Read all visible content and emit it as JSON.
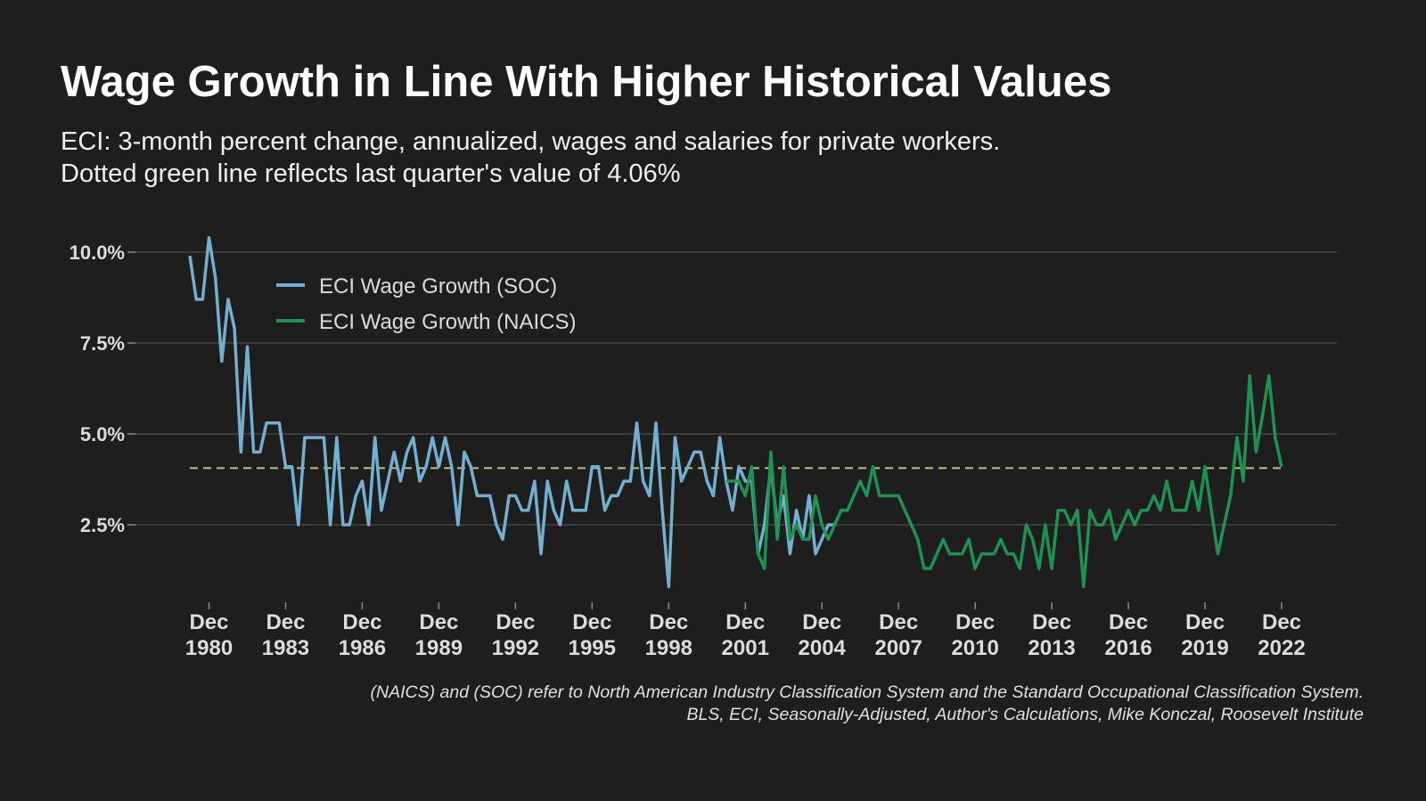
{
  "chart_data": {
    "type": "line",
    "title": "Wage Growth in Line With Higher Historical Values",
    "subtitle": [
      "ECI: 3-month percent change, annualized, wages and salaries for private workers.",
      "Dotted green line reflects last quarter's value of 4.06%"
    ],
    "notes": [
      "(NAICS) and (SOC) refer to North American Industry Classification System and the Standard Occupational Classification System.",
      "BLS, ECI, Seasonally-Adjusted, Author's Calculations, Mike Konczal, Roosevelt Institute"
    ],
    "x": [
      "1980-03",
      "1980-06",
      "1980-09",
      "1980-12",
      "1981-03",
      "1981-06",
      "1981-09",
      "1981-12",
      "1982-03",
      "1982-06",
      "1982-09",
      "1982-12",
      "1983-03",
      "1983-06",
      "1983-09",
      "1983-12",
      "1984-03",
      "1984-06",
      "1984-09",
      "1984-12",
      "1985-03",
      "1985-06",
      "1985-09",
      "1985-12",
      "1986-03",
      "1986-06",
      "1986-09",
      "1986-12",
      "1987-03",
      "1987-06",
      "1987-09",
      "1987-12",
      "1988-03",
      "1988-06",
      "1988-09",
      "1988-12",
      "1989-03",
      "1989-06",
      "1989-09",
      "1989-12",
      "1990-03",
      "1990-06",
      "1990-09",
      "1990-12",
      "1991-03",
      "1991-06",
      "1991-09",
      "1991-12",
      "1992-03",
      "1992-06",
      "1992-09",
      "1992-12",
      "1993-03",
      "1993-06",
      "1993-09",
      "1993-12",
      "1994-03",
      "1994-06",
      "1994-09",
      "1994-12",
      "1995-03",
      "1995-06",
      "1995-09",
      "1995-12",
      "1996-03",
      "1996-06",
      "1996-09",
      "1996-12",
      "1997-03",
      "1997-06",
      "1997-09",
      "1997-12",
      "1998-03",
      "1998-06",
      "1998-09",
      "1998-12",
      "1999-03",
      "1999-06",
      "1999-09",
      "1999-12",
      "2000-03",
      "2000-06",
      "2000-09",
      "2000-12",
      "2001-03",
      "2001-06",
      "2001-09",
      "2001-12",
      "2002-03",
      "2002-06",
      "2002-09",
      "2002-12",
      "2003-03",
      "2003-06",
      "2003-09",
      "2003-12",
      "2004-03",
      "2004-06",
      "2004-09",
      "2004-12",
      "2005-03",
      "2005-06",
      "2005-09",
      "2005-12",
      "2006-03",
      "2006-06",
      "2006-09",
      "2006-12",
      "2007-03",
      "2007-06",
      "2007-09",
      "2007-12",
      "2008-03",
      "2008-06",
      "2008-09",
      "2008-12",
      "2009-03",
      "2009-06",
      "2009-09",
      "2009-12",
      "2010-03",
      "2010-06",
      "2010-09",
      "2010-12",
      "2011-03",
      "2011-06",
      "2011-09",
      "2011-12",
      "2012-03",
      "2012-06",
      "2012-09",
      "2012-12",
      "2013-03",
      "2013-06",
      "2013-09",
      "2013-12",
      "2014-03",
      "2014-06",
      "2014-09",
      "2014-12",
      "2015-03",
      "2015-06",
      "2015-09",
      "2015-12",
      "2016-03",
      "2016-06",
      "2016-09",
      "2016-12",
      "2017-03",
      "2017-06",
      "2017-09",
      "2017-12",
      "2018-03",
      "2018-06",
      "2018-09",
      "2018-12",
      "2019-03",
      "2019-06",
      "2019-09",
      "2019-12",
      "2020-03",
      "2020-06",
      "2020-09",
      "2020-12",
      "2021-03",
      "2021-06",
      "2021-09",
      "2021-12",
      "2022-03",
      "2022-06",
      "2022-09",
      "2022-12"
    ],
    "series": [
      {
        "name": "ECI Wage Growth (SOC)",
        "color": "#74aed0",
        "values": [
          9.9,
          8.7,
          8.7,
          10.4,
          9.3,
          7.0,
          8.7,
          7.9,
          4.5,
          7.4,
          4.5,
          4.5,
          5.3,
          5.3,
          5.3,
          4.1,
          4.1,
          2.5,
          4.9,
          4.9,
          4.9,
          4.9,
          2.5,
          4.9,
          2.5,
          2.5,
          3.3,
          3.7,
          2.5,
          4.9,
          2.9,
          3.7,
          4.5,
          3.7,
          4.5,
          4.9,
          3.7,
          4.1,
          4.9,
          4.1,
          4.9,
          4.1,
          2.5,
          4.5,
          4.1,
          3.3,
          3.3,
          3.3,
          2.5,
          2.1,
          3.3,
          3.3,
          2.9,
          2.9,
          3.7,
          1.7,
          3.7,
          2.9,
          2.5,
          3.7,
          2.9,
          2.9,
          2.9,
          4.1,
          4.1,
          2.9,
          3.3,
          3.3,
          3.7,
          3.7,
          5.3,
          3.7,
          3.3,
          5.3,
          2.9,
          0.8,
          4.9,
          3.7,
          4.1,
          4.5,
          4.5,
          3.7,
          3.3,
          4.9,
          3.7,
          2.9,
          4.1,
          3.7,
          3.7,
          1.7,
          2.5,
          4.1,
          2.5,
          3.3,
          1.7,
          2.9,
          2.1,
          3.3,
          1.7,
          2.1,
          2.5,
          2.5,
          2.9,
          null,
          null,
          null,
          null,
          null,
          null,
          null,
          null,
          null,
          null,
          null,
          null,
          null,
          null,
          null,
          null,
          null,
          null,
          null,
          null,
          null,
          null,
          null,
          null,
          null,
          null,
          null,
          null,
          null,
          null,
          null,
          null,
          null,
          null,
          null,
          null,
          null,
          null,
          null,
          null,
          null,
          null,
          null,
          null,
          null,
          null,
          null,
          null,
          null,
          null,
          null,
          null,
          null,
          null,
          null,
          null,
          null,
          null,
          null,
          null,
          null,
          null,
          null,
          null,
          null,
          null,
          null,
          null,
          null
        ]
      },
      {
        "name": "ECI Wage Growth (NAICS)",
        "color": "#1f9150",
        "values": [
          null,
          null,
          null,
          null,
          null,
          null,
          null,
          null,
          null,
          null,
          null,
          null,
          null,
          null,
          null,
          null,
          null,
          null,
          null,
          null,
          null,
          null,
          null,
          null,
          null,
          null,
          null,
          null,
          null,
          null,
          null,
          null,
          null,
          null,
          null,
          null,
          null,
          null,
          null,
          null,
          null,
          null,
          null,
          null,
          null,
          null,
          null,
          null,
          null,
          null,
          null,
          null,
          null,
          null,
          null,
          null,
          null,
          null,
          null,
          null,
          null,
          null,
          null,
          null,
          null,
          null,
          null,
          null,
          null,
          null,
          null,
          null,
          null,
          null,
          null,
          null,
          null,
          null,
          null,
          null,
          null,
          null,
          null,
          null,
          3.7,
          3.7,
          3.7,
          3.3,
          4.1,
          1.7,
          1.3,
          4.5,
          2.1,
          4.1,
          2.1,
          2.5,
          2.1,
          2.1,
          3.3,
          2.5,
          2.1,
          2.5,
          2.9,
          2.9,
          3.3,
          3.7,
          3.3,
          4.1,
          3.3,
          3.3,
          3.3,
          3.3,
          2.9,
          2.5,
          2.1,
          1.3,
          1.3,
          1.7,
          2.1,
          1.7,
          1.7,
          1.7,
          2.1,
          1.3,
          1.7,
          1.7,
          1.7,
          2.1,
          1.7,
          1.7,
          1.3,
          2.5,
          2.1,
          1.3,
          2.5,
          1.3,
          2.9,
          2.9,
          2.5,
          2.9,
          0.8,
          2.9,
          2.5,
          2.5,
          2.9,
          2.1,
          2.5,
          2.9,
          2.5,
          2.9,
          2.9,
          3.3,
          2.9,
          3.7,
          2.9,
          2.9,
          2.9,
          3.7,
          2.9,
          4.1,
          2.9,
          1.7,
          2.5,
          3.3,
          4.9,
          3.7,
          6.6,
          4.5,
          5.5,
          6.6,
          4.9,
          4.1
        ]
      }
    ],
    "hline": {
      "value": 4.06,
      "color": "#b9c57e",
      "style": "dashed"
    },
    "xlim": [
      "1980-03",
      "2022-12"
    ],
    "xticks": [
      {
        "value": "1980-12",
        "label": "Dec 1980"
      },
      {
        "value": "1983-12",
        "label": "Dec 1983"
      },
      {
        "value": "1986-12",
        "label": "Dec 1986"
      },
      {
        "value": "1989-12",
        "label": "Dec 1989"
      },
      {
        "value": "1992-12",
        "label": "Dec 1992"
      },
      {
        "value": "1995-12",
        "label": "Dec 1995"
      },
      {
        "value": "1998-12",
        "label": "Dec 1998"
      },
      {
        "value": "2001-12",
        "label": "Dec 2001"
      },
      {
        "value": "2004-12",
        "label": "Dec 2004"
      },
      {
        "value": "2007-12",
        "label": "Dec 2007"
      },
      {
        "value": "2010-12",
        "label": "Dec 2010"
      },
      {
        "value": "2013-12",
        "label": "Dec 2013"
      },
      {
        "value": "2016-12",
        "label": "Dec 2016"
      },
      {
        "value": "2019-12",
        "label": "Dec 2019"
      },
      {
        "value": "2022-12",
        "label": "Dec 2022"
      }
    ],
    "ylim": [
      0.5,
      10.5
    ],
    "yticks": [
      {
        "value": 2.5,
        "label": "2.5%"
      },
      {
        "value": 5,
        "label": "5.0%"
      },
      {
        "value": 7.5,
        "label": "7.5%"
      },
      {
        "value": 10,
        "label": "10.0%"
      }
    ],
    "grid": true,
    "legend": "top-left"
  }
}
